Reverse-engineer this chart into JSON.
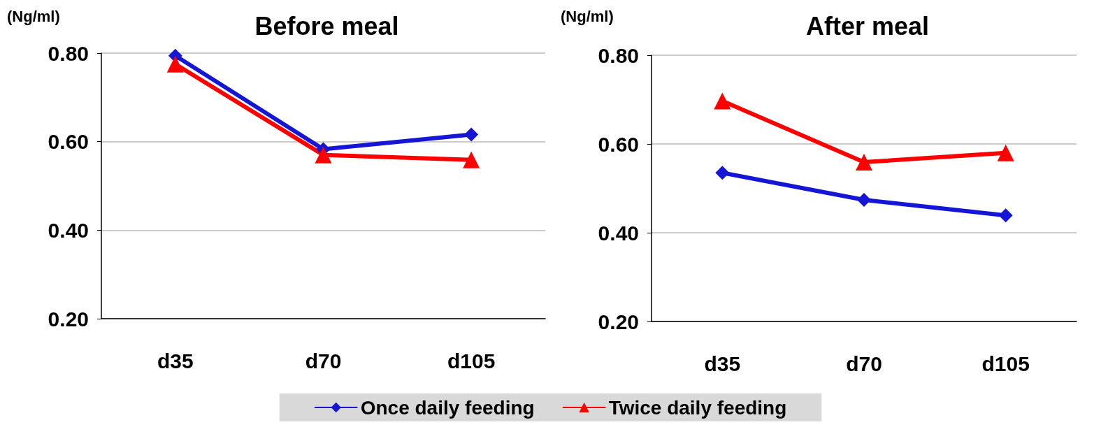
{
  "chart_data": [
    {
      "type": "line",
      "title": "Before meal",
      "ylabel": "(Ng/ml)",
      "categories": [
        "d35",
        "d70",
        "d105"
      ],
      "ylim": [
        0.2,
        0.8
      ],
      "yticks": [
        {
          "value": 0.2,
          "label": "0.20"
        },
        {
          "value": 0.4,
          "label": "0.40"
        },
        {
          "value": 0.6,
          "label": "0.60"
        },
        {
          "value": 0.8,
          "label": "0.80"
        }
      ],
      "grid": "y",
      "legend": "bottom",
      "line_style": "solid",
      "series": [
        {
          "name": "Once daily feeding",
          "color": "#1515d6",
          "marker": "diamond",
          "values": [
            0.794,
            0.583,
            0.616
          ]
        },
        {
          "name": "Twice daily feeding",
          "color": "#ff0000",
          "marker": "triangle",
          "values": [
            0.775,
            0.57,
            0.559
          ]
        }
      ]
    },
    {
      "type": "line",
      "title": "After meal",
      "ylabel": "(Ng/ml)",
      "categories": [
        "d35",
        "d70",
        "d105"
      ],
      "ylim": [
        0.2,
        0.8
      ],
      "yticks": [
        {
          "value": 0.2,
          "label": "0.20"
        },
        {
          "value": 0.4,
          "label": "0.40"
        },
        {
          "value": 0.6,
          "label": "0.60"
        },
        {
          "value": 0.8,
          "label": "0.80"
        }
      ],
      "grid": "y",
      "legend": "bottom",
      "line_style": "solid",
      "series": [
        {
          "name": "Once daily feeding",
          "color": "#1515d6",
          "marker": "diamond",
          "values": [
            0.535,
            0.474,
            0.439
          ]
        },
        {
          "name": "Twice daily feeding",
          "color": "#ff0000",
          "marker": "triangle",
          "values": [
            0.697,
            0.559,
            0.58
          ]
        }
      ]
    }
  ]
}
